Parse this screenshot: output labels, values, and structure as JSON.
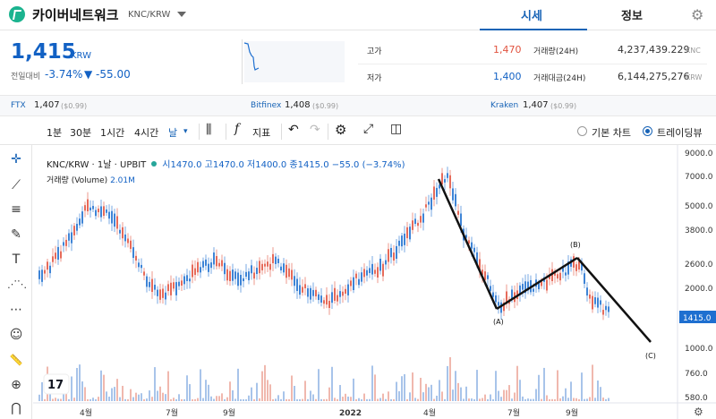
{
  "header": {
    "coin_name": "카이버네트워크",
    "pair": "KNC/KRW",
    "tabs": [
      "시세",
      "정보"
    ]
  },
  "price": {
    "current": "1,415",
    "currency": "KRW",
    "change_label": "전일대비",
    "change_pct": "-3.74%",
    "change_amt": "▼ -55.00"
  },
  "stats": {
    "high_label": "고가",
    "high": "1,470",
    "low_label": "저가",
    "low": "1,400",
    "vol_label": "거래량(24H)",
    "vol": "4,237,439.229",
    "vol_unit": "KNC",
    "amt_label": "거래대금(24H)",
    "amt": "6,144,275,276",
    "amt_unit": "KRW"
  },
  "exchanges": [
    {
      "name": "FTX",
      "price": "1,407",
      "usd": "($0.99)"
    },
    {
      "name": "Bitfinex",
      "price": "1,408",
      "usd": "($0.99)"
    },
    {
      "name": "Kraken",
      "price": "1,407",
      "usd": "($0.99)"
    }
  ],
  "toolbar": {
    "intervals": [
      "1분",
      "30분",
      "1시간",
      "4시간",
      "날"
    ],
    "indicator": "지표",
    "radio_basic": "기본 차트",
    "radio_tv": "트레이딩뷰"
  },
  "legend": {
    "symbol": "KNC/KRW · 1날 · UPBIT",
    "ohlc": "시1470.0 고1470.0 저1400.0 종1415.0 −55.0 (−3.74%)",
    "volume_label": "거래량 (Volume)",
    "volume_value": "2.01M"
  },
  "axis": {
    "y_ticks": [
      "9000.0",
      "7000.0",
      "5000.0",
      "3800.0",
      "2600.0",
      "2000.0",
      "1000.0",
      "760.0",
      "580.0"
    ],
    "last_price_tag": "1415.0",
    "x_ticks": [
      "4월",
      "7월",
      "9월",
      "2022",
      "4월",
      "7월",
      "9월"
    ]
  },
  "annotations": [
    "(A)",
    "(B)",
    "(C)"
  ],
  "colors": {
    "up": "#e1533f",
    "down": "#1e6fd0",
    "accent": "#1763b6"
  }
}
